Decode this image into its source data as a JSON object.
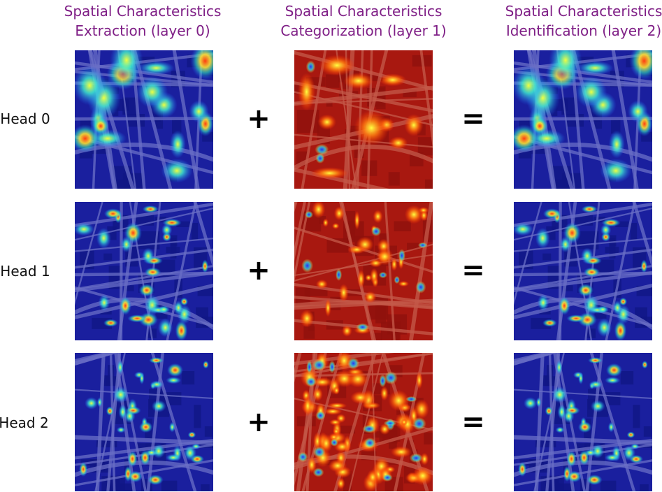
{
  "columns": [
    {
      "line1": "Spatial Characteristics",
      "line2": "Extraction (layer 0)"
    },
    {
      "line1": "Spatial Characteristics",
      "line2": "Categorization (layer 1)"
    },
    {
      "line1": "Spatial Characteristics",
      "line2": "Identification (layer 2)"
    }
  ],
  "rows": [
    {
      "label": "Head 0"
    },
    {
      "label": "Head 1"
    },
    {
      "label": "Head 2"
    }
  ],
  "operators": {
    "plus": "+",
    "equals": "="
  },
  "colors": {
    "title": "#7f1f86",
    "blue_base": "#1a1f9e",
    "red_base": "#a81810",
    "road_blue": "#6a6fc6",
    "road_red": "#c45a4a"
  },
  "heatmap_colormap": "jet"
}
